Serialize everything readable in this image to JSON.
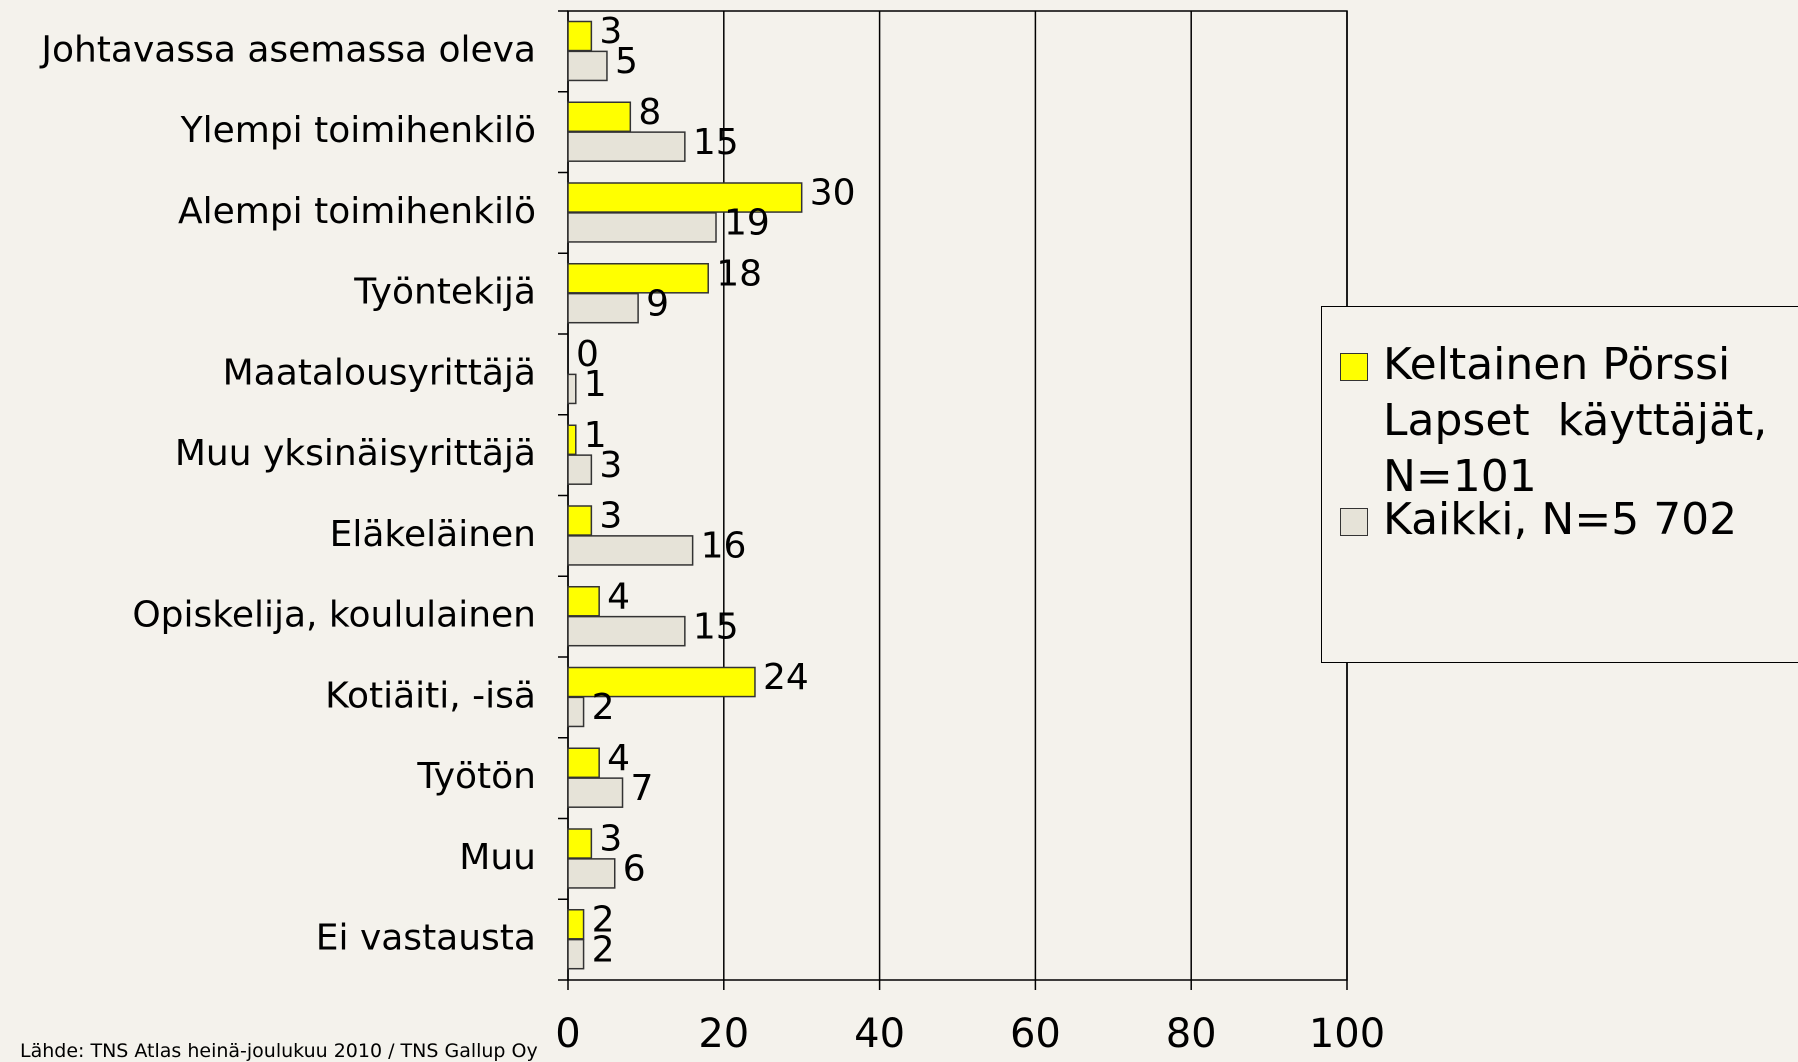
{
  "chart_data": {
    "type": "bar",
    "orientation": "horizontal",
    "categories": [
      "Johtavassa asemassa oleva",
      "Ylempi toimihenkilö",
      "Alempi toimihenkilö",
      "Työntekijä",
      "Maatalousyrittäjä",
      "Muu yksinäisyrittäjä",
      "Eläkeläinen",
      "Opiskelija, koululainen",
      "Kotiäiti, -isä",
      "Työtön",
      "Muu",
      "Ei vastausta"
    ],
    "series": [
      {
        "name": "Keltainen Pörssi Lapset  käyttäjät, N=101",
        "color": "#ffff00",
        "values": [
          3,
          8,
          30,
          18,
          0,
          1,
          3,
          4,
          24,
          4,
          3,
          2
        ]
      },
      {
        "name": "Kaikki, N=5 702",
        "color": "#e6e3d8",
        "values": [
          5,
          15,
          19,
          9,
          1,
          3,
          16,
          15,
          2,
          7,
          6,
          2
        ]
      }
    ],
    "xlim": [
      0,
      100
    ],
    "xticks": [
      0,
      20,
      40,
      60,
      80,
      100
    ],
    "grid": true,
    "source": "Lähde: TNS Atlas heinä-joulukuu 2010 / TNS Gallup Oy"
  }
}
